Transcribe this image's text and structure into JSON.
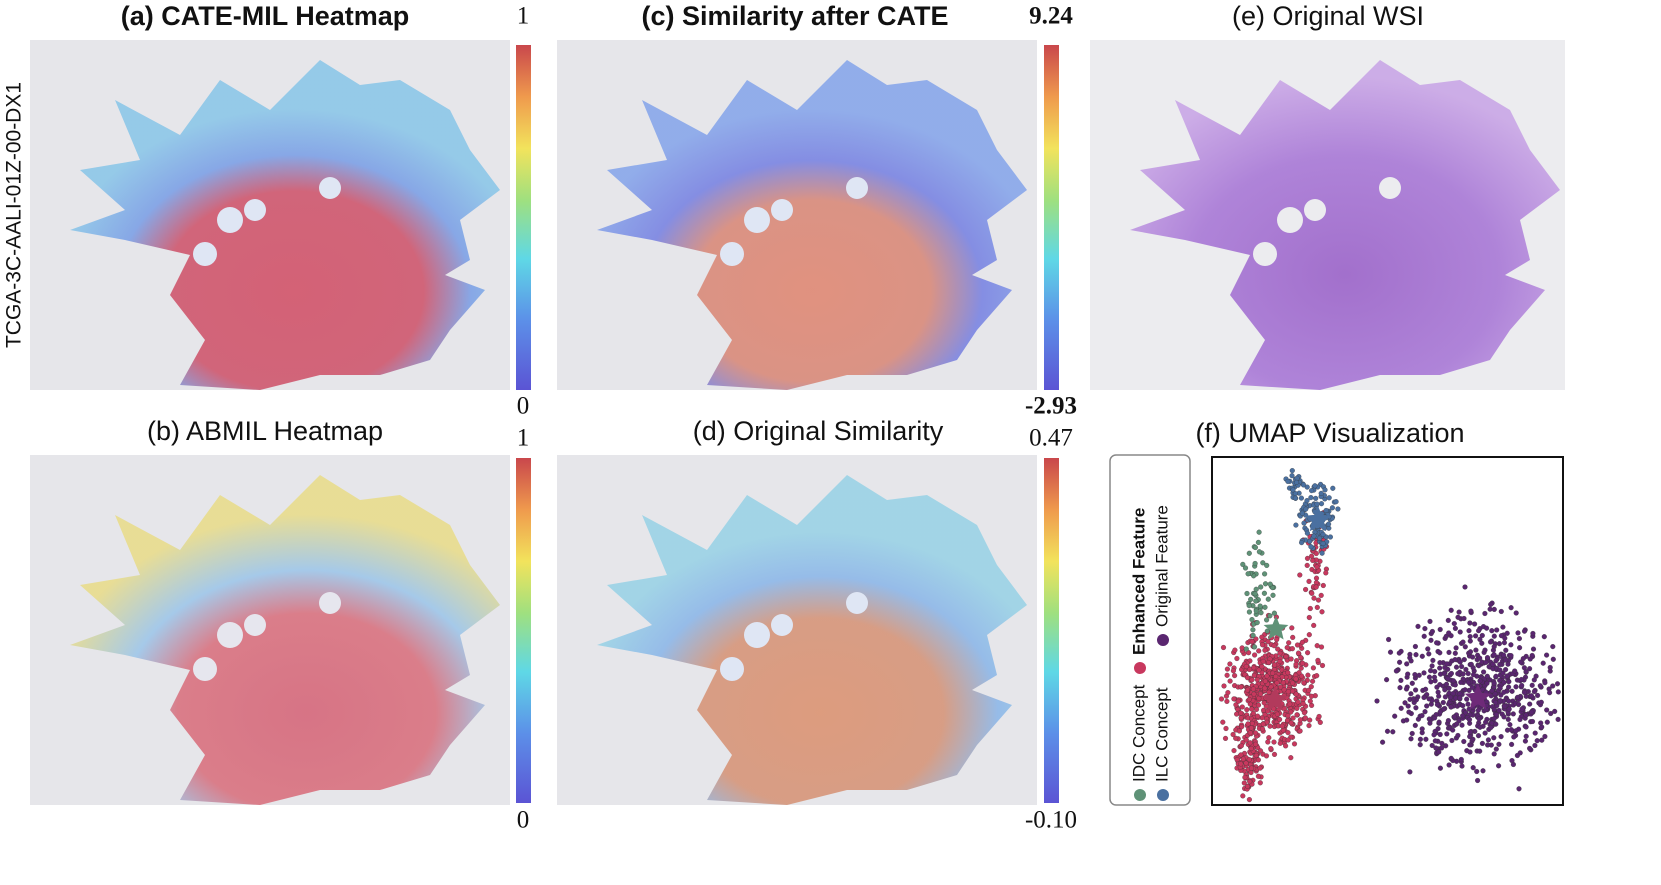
{
  "side_label": "TCGA-3C-AALI-01Z-00-DX1",
  "panels": [
    {
      "title": "(a) CATE-MIL Heatmap",
      "colorbar": {
        "max": "1",
        "min": "0"
      }
    },
    {
      "title": "(b) ABMIL Heatmap",
      "colorbar": {
        "max": "1",
        "min": "0"
      }
    },
    {
      "title": "(c) Similarity after CATE",
      "colorbar": {
        "max": "9.24",
        "min": "-2.93"
      }
    },
    {
      "title": "(d) Original Similarity",
      "colorbar": {
        "max": "0.47",
        "min": "-0.10"
      }
    },
    {
      "title": "(e) Original WSI"
    }
  ],
  "umap": {
    "title": "(f) UMAP Visualization",
    "legend": [
      "Enhanced Feature",
      "Original Feature",
      "IDC Concept",
      "ILC Concept"
    ]
  }
}
